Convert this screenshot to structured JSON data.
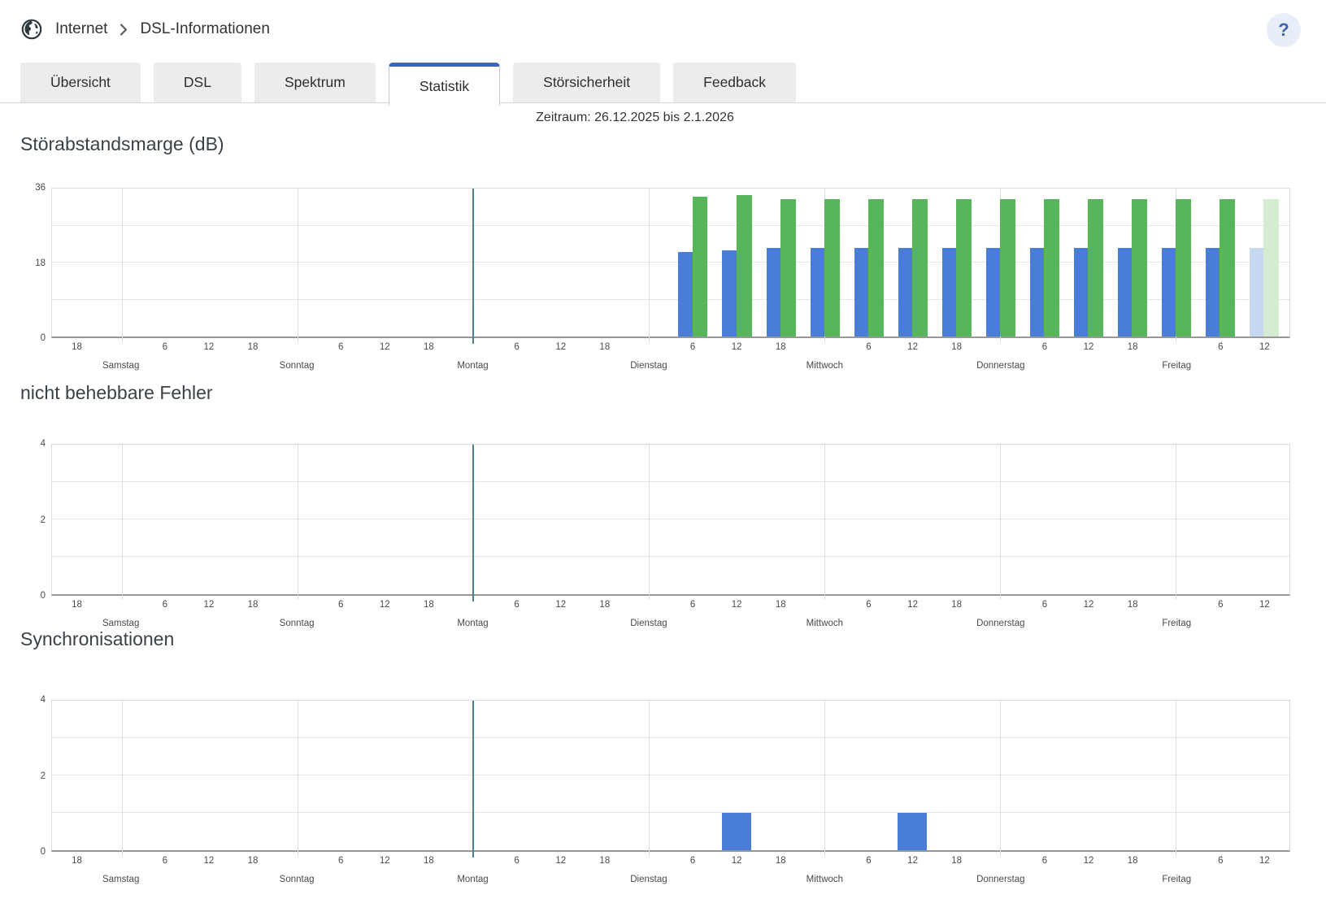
{
  "breadcrumb": {
    "items": [
      {
        "label": "Internet"
      },
      {
        "label": "DSL-Informationen"
      }
    ]
  },
  "header": {
    "help_label": "?"
  },
  "tabs": [
    {
      "label": "Übersicht",
      "active": false
    },
    {
      "label": "DSL",
      "active": false
    },
    {
      "label": "Spektrum",
      "active": false
    },
    {
      "label": "Statistik",
      "active": true
    },
    {
      "label": "Störsicherheit",
      "active": false
    },
    {
      "label": "Feedback",
      "active": false
    }
  ],
  "period_label": "Zeitraum: 26.12.2025 bis 2.1.2026",
  "time_axis": {
    "total_hours": 169,
    "lead_hours": 9.5,
    "days": [
      "Samstag",
      "Sonntag",
      "Montag",
      "Dienstag",
      "Mittwoch",
      "Donnerstag",
      "Freitag"
    ],
    "hour_tick_labels": [
      "6",
      "12",
      "18"
    ],
    "lead_tick": {
      "hour_offset": 3.5,
      "label": "18"
    },
    "week_start_line": {
      "day_index": 2,
      "color": "#4d7f95"
    }
  },
  "chart_data": [
    {
      "id": "snr",
      "type": "bar",
      "title": "Störabstandsmarge (dB)",
      "ylim": [
        0,
        36
      ],
      "yticks": [
        "0",
        "18",
        "36"
      ],
      "grid_step": 9,
      "legend_position": "none",
      "series": [
        {
          "key": "downstream",
          "color": "#4a7dd6",
          "color_current": "#c7d8f1"
        },
        {
          "key": "upstream",
          "color": "#57b55b",
          "color_current": "#d5ecd3"
        }
      ],
      "bars": [
        {
          "time": "Dienstag 06:00",
          "hour_offset": 87.5,
          "downstream": 20.5,
          "upstream": 34,
          "current": false
        },
        {
          "time": "Dienstag 12:00",
          "hour_offset": 93.5,
          "downstream": 21,
          "upstream": 34.5,
          "current": false
        },
        {
          "time": "Dienstag 18:00",
          "hour_offset": 99.5,
          "downstream": 21.5,
          "upstream": 33.5,
          "current": false
        },
        {
          "time": "Mittwoch 00:00",
          "hour_offset": 105.5,
          "downstream": 21.5,
          "upstream": 33.5,
          "current": false
        },
        {
          "time": "Mittwoch 06:00",
          "hour_offset": 111.5,
          "downstream": 21.5,
          "upstream": 33.5,
          "current": false
        },
        {
          "time": "Mittwoch 12:00",
          "hour_offset": 117.5,
          "downstream": 21.5,
          "upstream": 33.5,
          "current": false
        },
        {
          "time": "Mittwoch 18:00",
          "hour_offset": 123.5,
          "downstream": 21.5,
          "upstream": 33.5,
          "current": false
        },
        {
          "time": "Donnerstag 00:00",
          "hour_offset": 129.5,
          "downstream": 21.5,
          "upstream": 33.5,
          "current": false
        },
        {
          "time": "Donnerstag 06:00",
          "hour_offset": 135.5,
          "downstream": 21.5,
          "upstream": 33.5,
          "current": false
        },
        {
          "time": "Donnerstag 12:00",
          "hour_offset": 141.5,
          "downstream": 21.5,
          "upstream": 33.5,
          "current": false
        },
        {
          "time": "Donnerstag 18:00",
          "hour_offset": 147.5,
          "downstream": 21.5,
          "upstream": 33.5,
          "current": false
        },
        {
          "time": "Freitag 00:00",
          "hour_offset": 153.5,
          "downstream": 21.5,
          "upstream": 33.5,
          "current": false
        },
        {
          "time": "Freitag 06:00",
          "hour_offset": 159.5,
          "downstream": 21.5,
          "upstream": 33.5,
          "current": false
        },
        {
          "time": "Freitag 12:00",
          "hour_offset": 165.5,
          "downstream": 21.5,
          "upstream": 33.5,
          "current": true
        }
      ]
    },
    {
      "id": "errors",
      "type": "bar",
      "title": "nicht behebbare Fehler",
      "ylim": [
        0,
        4
      ],
      "yticks": [
        "0",
        "2",
        "4"
      ],
      "grid_step": 1,
      "legend_position": "none",
      "series": [],
      "bars": []
    },
    {
      "id": "sync",
      "type": "bar",
      "title": "Synchronisationen",
      "ylim": [
        0,
        4
      ],
      "yticks": [
        "0",
        "2",
        "4"
      ],
      "grid_step": 1,
      "legend_position": "none",
      "series": [
        {
          "key": "count",
          "color": "#4a7dd6",
          "color_current": "#c7d8f1"
        }
      ],
      "bars": [
        {
          "time": "Dienstag 12:00",
          "hour_offset": 93.5,
          "count": 1,
          "current": false
        },
        {
          "time": "Mittwoch 12:00",
          "hour_offset": 117.5,
          "count": 1,
          "current": false
        }
      ]
    }
  ],
  "colors": {
    "tab_active_accent": "#3a67b7",
    "help_bg": "#e8eef8",
    "help_fg": "#3c63ae",
    "bar_blue": "#4a7dd6",
    "bar_green": "#57b55b",
    "bar_blue_light": "#c7d8f1",
    "bar_green_light": "#d5ecd3",
    "week_line": "#4d7f95",
    "grid": "#e7e7e7",
    "axis_bottom": "#979797"
  }
}
